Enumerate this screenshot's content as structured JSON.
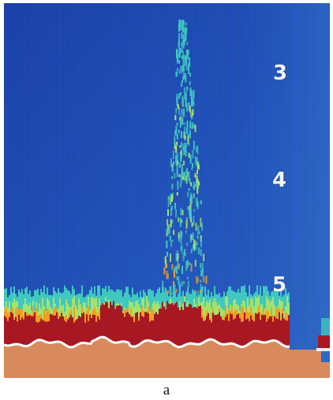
{
  "figure": {
    "caption": "a"
  },
  "depth_scale": {
    "labels": [
      "3",
      "4",
      "5"
    ]
  },
  "display": {
    "colors": {
      "water": "#1f48b3",
      "water_light": "#2a62c4",
      "weak_echo": "#3fc7c0",
      "mid_echo": "#b7e65b",
      "strong_echo": "#f0a020",
      "bottom_echo": "#a81822",
      "bottom_line": "#ffffff",
      "seabed": "#d98a5c"
    }
  }
}
